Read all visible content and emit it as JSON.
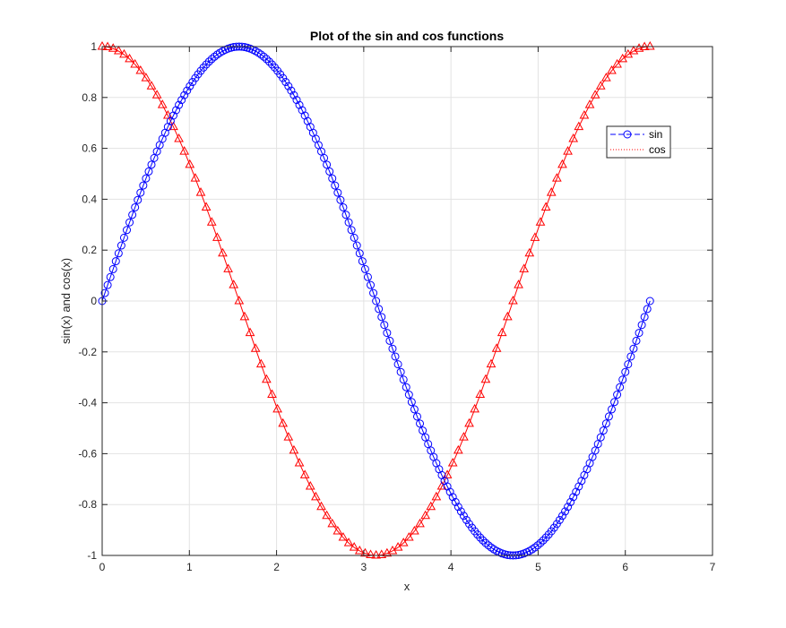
{
  "chart_data": {
    "type": "line",
    "title": "Plot of the sin and cos functions",
    "xlabel": "x",
    "ylabel": "sin(x) and cos(x)",
    "xlim": [
      0,
      7
    ],
    "ylim": [
      -1,
      1
    ],
    "xticks": [
      0,
      1,
      2,
      3,
      4,
      5,
      6,
      7
    ],
    "yticks": [
      -1,
      -0.8,
      -0.6,
      -0.4,
      -0.2,
      0,
      0.2,
      0.4,
      0.6,
      0.8,
      1
    ],
    "xtick_labels": [
      "0",
      "1",
      "2",
      "3",
      "4",
      "5",
      "6",
      "7"
    ],
    "ytick_labels": [
      "-1",
      "-0.8",
      "-0.6",
      "-0.4",
      "-0.2",
      "0",
      "0.2",
      "0.4",
      "0.6",
      "0.8",
      "1"
    ],
    "grid": true,
    "legend_position": "top-right",
    "x_range": [
      0,
      6.2832
    ],
    "series": [
      {
        "name": "sin",
        "function": "sin(x)",
        "num_points": 201,
        "color": "#0000ff",
        "line_style": "dashed",
        "marker": "circle"
      },
      {
        "name": "cos",
        "function": "cos(x)",
        "num_points": 101,
        "color": "#ff0000",
        "line_style": "dotted",
        "marker": "triangle"
      }
    ]
  }
}
